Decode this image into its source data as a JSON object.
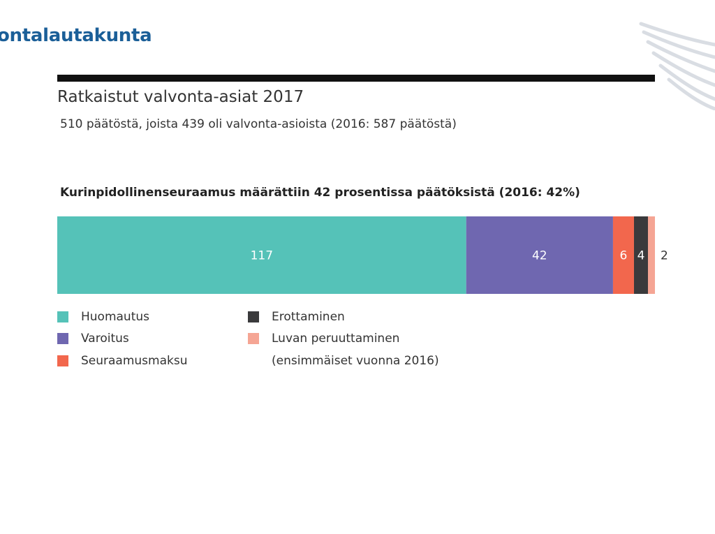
{
  "header": {
    "brand": "ontalautakunta"
  },
  "page": {
    "title": "Ratkaistut valvonta-asiat 2017",
    "subtitle": "510 päätöstä, joista 439 oli valvonta-asioista (2016: 587 päätöstä)",
    "chart_heading": "Kurinpidollinenseuraamus määrättiin 42 prosentissa päätöksistä (2016: 42%)"
  },
  "legend": {
    "items": [
      {
        "label": "Huomautus",
        "color": "#55c2b8"
      },
      {
        "label": "Varoitus",
        "color": "#6f67b0"
      },
      {
        "label": "Seuraamusmaksu",
        "color": "#f2674d"
      },
      {
        "label": "Erottaminen",
        "color": "#3a3a3c"
      },
      {
        "label": "Luvan peruuttaminen",
        "color": "#f5a594"
      }
    ],
    "note": "(ensimmäiset vuonna 2016)"
  },
  "chart_data": {
    "type": "bar",
    "orientation": "horizontal-stacked-100",
    "title": "Kurinpidollinenseuraamus määrättiin 42 prosentissa päätöksistä (2016: 42%)",
    "categories": [
      "Huomautus",
      "Varoitus",
      "Seuraamusmaksu",
      "Erottaminen",
      "Luvan peruuttaminen"
    ],
    "values": [
      117,
      42,
      6,
      4,
      2
    ],
    "colors": [
      "#55c2b8",
      "#6f67b0",
      "#f2674d",
      "#3a3a3c",
      "#f5a594"
    ],
    "data_labels": [
      "117",
      "42",
      "6",
      "4",
      "2"
    ],
    "xlabel": "",
    "ylabel": "",
    "grid": false,
    "legend_position": "bottom"
  }
}
